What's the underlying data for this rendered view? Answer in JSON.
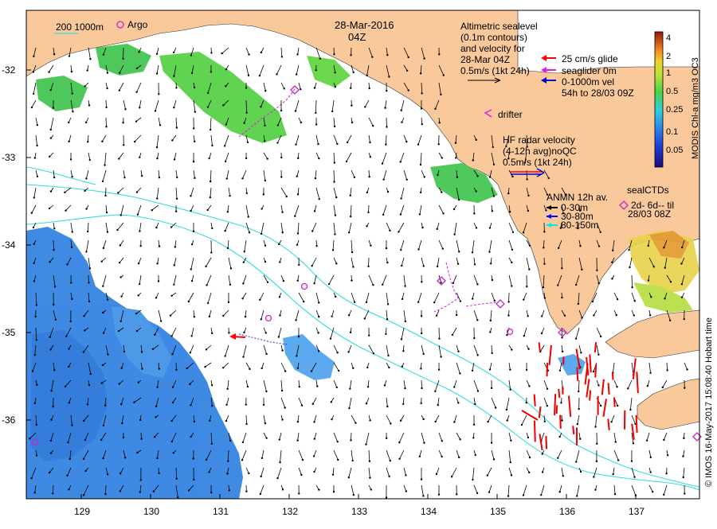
{
  "title": {
    "date": "28-Mar-2016",
    "time": "04Z"
  },
  "axes": {
    "x_ticks": [
      "129",
      "130",
      "131",
      "132",
      "133",
      "134",
      "135",
      "136",
      "137"
    ],
    "y_ticks": [
      "-32",
      "-33",
      "-34",
      "-35",
      "-36"
    ]
  },
  "legend_top_left": {
    "contour_label": "200  1000m",
    "argo_label": "Argo"
  },
  "altimetry_block": {
    "lines": [
      "Altimetric sealevel",
      "(0.1m contours)",
      "and velocity for",
      "28-Mar 04Z",
      "0.5m/s (1kt 24h)"
    ]
  },
  "glider_block": {
    "line1": "25 cm/s glide",
    "line2": "seaglider 0m",
    "line3": "0-1000m vel",
    "line4": "54h to 28/03 09Z"
  },
  "drifter_label": "drifter",
  "hf_radar_block": {
    "lines": [
      "HF radar velocity",
      "(4-12h avg)noQC",
      "0.5m/s (1kt 24h)"
    ]
  },
  "anmn_block": {
    "title": "ANMN 12h av.",
    "items": [
      {
        "label": "0-30m",
        "color": "#000000"
      },
      {
        "label": "30-80m",
        "color": "#0000ff"
      },
      {
        "label": "80-150m",
        "color": "#00e5e5"
      }
    ]
  },
  "seal_block": {
    "lines": [
      "sealCTDs",
      "2d- 6d-- til",
      "28/03 08Z"
    ]
  },
  "colorbar": {
    "label": "MODIS Chl-a mg/m3 OC3",
    "ticks": [
      "4",
      "2",
      "1",
      "0.5",
      "0.25",
      "0.1",
      "0.05"
    ]
  },
  "credit": "© IMOS 16-May-2017 15:08:40 Hobart time",
  "colors": {
    "land": "#f9c89b",
    "argo": "#cc22cc",
    "glider": "#ff0000",
    "isobath": "#33dddd"
  }
}
